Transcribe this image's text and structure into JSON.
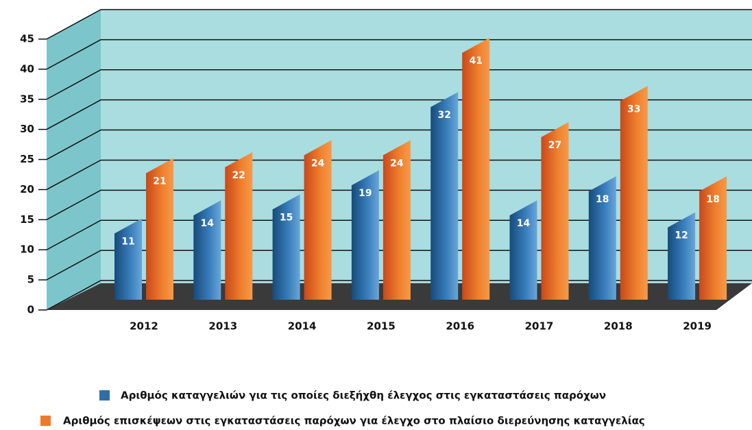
{
  "chart_data": {
    "type": "bar",
    "categories": [
      "2012",
      "2013",
      "2014",
      "2015",
      "2016",
      "2017",
      "2018",
      "2019"
    ],
    "series": [
      {
        "name": "Αριθμός καταγγελιών για τις οποίες διεξήχθη έλεγχος στις εγκαταστάσεις παρόχων",
        "color": "#2f6ea6",
        "values": [
          11,
          14,
          15,
          19,
          32,
          14,
          18,
          12
        ]
      },
      {
        "name": "Αριθμός επισκέψεων στις εγκαταστάσεις παρόχων για έλεγχο στο πλαίσιο διερεύνησης καταγγελίας",
        "color": "#ec7a2c",
        "values": [
          21,
          22,
          24,
          24,
          41,
          27,
          33,
          18
        ]
      }
    ],
    "ylim": [
      0,
      45
    ],
    "yticks": [
      0,
      5,
      10,
      15,
      20,
      25,
      30,
      35,
      40,
      45
    ],
    "grid": true,
    "legend": "bottom"
  }
}
